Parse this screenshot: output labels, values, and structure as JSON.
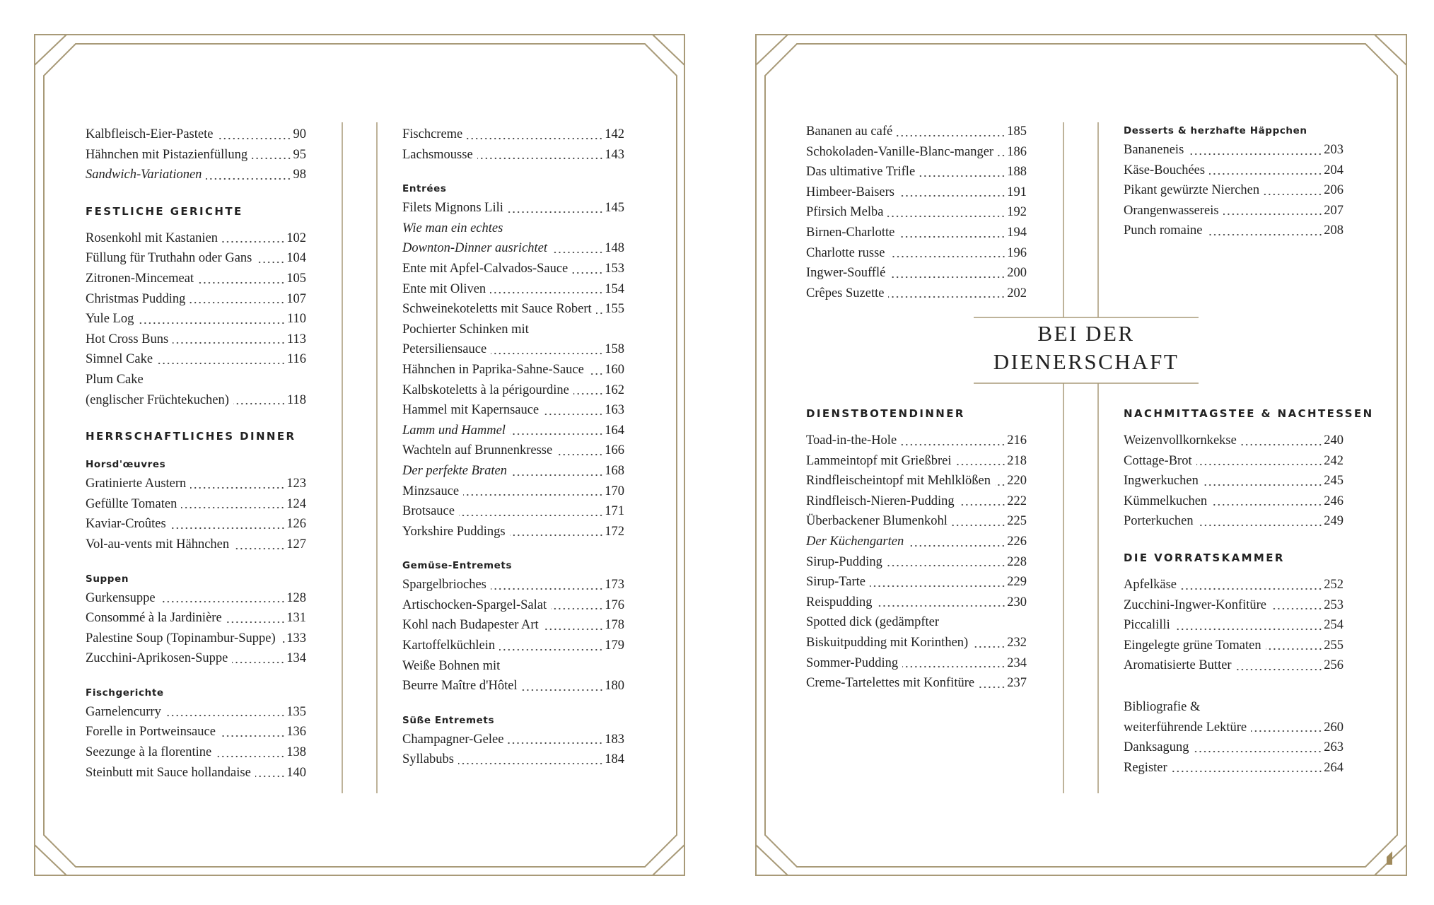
{
  "colors": {
    "frame": "#a89a78",
    "text": "#222222"
  },
  "section_title": [
    "BEI DER",
    "DIENERSCHAFT"
  ],
  "left_col1": [
    {
      "t": "Kalbfleisch-Eier-Pastete",
      "p": "90"
    },
    {
      "t": "Hähnchen mit Pistazienfüllung",
      "p": "95"
    },
    {
      "t": "Sandwich-Variationen",
      "p": "98",
      "i": true
    },
    {
      "h": "FESTLICHE GERICHTE"
    },
    {
      "t": "Rosenkohl mit Kastanien",
      "p": "102"
    },
    {
      "t": "Füllung für Truthahn oder Gans",
      "p": "104"
    },
    {
      "t": "Zitronen-Mincemeat",
      "p": "105"
    },
    {
      "t": "Christmas Pudding",
      "p": "107"
    },
    {
      "t": "Yule Log",
      "p": "110"
    },
    {
      "t": "Hot Cross Buns",
      "p": "113"
    },
    {
      "t": "Simnel Cake",
      "p": "116"
    },
    {
      "pre": "Plum Cake",
      "t": "(englischer Früchtekuchen)",
      "p": "118"
    },
    {
      "h": "HERRSCHAFTLICHES DINNER"
    },
    {
      "s": "Horsd'œuvres"
    },
    {
      "t": "Gratinierte Austern",
      "p": "123"
    },
    {
      "t": "Gefüllte Tomaten",
      "p": "124"
    },
    {
      "t": "Kaviar-Croûtes",
      "p": "126"
    },
    {
      "t": "Vol-au-vents mit Hähnchen",
      "p": "127"
    },
    {
      "s": "Suppen"
    },
    {
      "t": "Gurkensuppe",
      "p": "128"
    },
    {
      "t": "Consommé à la Jardinière",
      "p": "131"
    },
    {
      "t": "Palestine Soup (Topinambur-Suppe)",
      "p": "133"
    },
    {
      "t": "Zucchini-Aprikosen-Suppe",
      "p": "134"
    },
    {
      "s": "Fischgerichte"
    },
    {
      "t": "Garnelencurry",
      "p": "135"
    },
    {
      "t": "Forelle in Portweinsauce",
      "p": "136"
    },
    {
      "t": "Seezunge à la florentine",
      "p": "138"
    },
    {
      "t": "Steinbutt mit Sauce hollandaise",
      "p": "140"
    }
  ],
  "left_col2": [
    {
      "t": "Fischcreme",
      "p": "142"
    },
    {
      "t": "Lachsmousse",
      "p": "143"
    },
    {
      "s": "Entrées"
    },
    {
      "t": "Filets Mignons Lili",
      "p": "145"
    },
    {
      "pre": "Wie man ein echtes",
      "t": "Downton-Dinner ausrichtet",
      "p": "148",
      "i": true
    },
    {
      "t": "Ente mit Apfel-Calvados-Sauce",
      "p": "153"
    },
    {
      "t": "Ente mit Oliven",
      "p": "154"
    },
    {
      "t": "Schweinekoteletts mit Sauce Robert",
      "p": "155"
    },
    {
      "pre": "Pochierter Schinken mit",
      "t": "Petersiliensauce",
      "p": "158"
    },
    {
      "t": "Hähnchen in Paprika-Sahne-Sauce",
      "p": "160"
    },
    {
      "t": "Kalbskoteletts à la périgourdine",
      "p": "162"
    },
    {
      "t": "Hammel mit Kapernsauce",
      "p": "163"
    },
    {
      "t": "Lamm und Hammel",
      "p": "164",
      "i": true
    },
    {
      "t": "Wachteln auf Brunnenkresse",
      "p": "166"
    },
    {
      "t": "Der perfekte Braten",
      "p": "168",
      "i": true
    },
    {
      "t": "Minzsauce",
      "p": "170"
    },
    {
      "t": "Brotsauce",
      "p": "171"
    },
    {
      "t": "Yorkshire Puddings",
      "p": "172"
    },
    {
      "s": "Gemüse-Entremets"
    },
    {
      "t": "Spargelbrioches",
      "p": "173"
    },
    {
      "t": "Artischocken-Spargel-Salat",
      "p": "176"
    },
    {
      "t": "Kohl nach Budapester Art",
      "p": "178"
    },
    {
      "t": "Kartoffelküchlein",
      "p": "179"
    },
    {
      "pre": "Weiße Bohnen mit",
      "t": "Beurre Maître d'Hôtel",
      "p": "180"
    },
    {
      "s": "Süße Entremets"
    },
    {
      "t": "Champagner-Gelee",
      "p": "183"
    },
    {
      "t": "Syllabubs",
      "p": "184"
    }
  ],
  "right_col1_top": [
    {
      "t": "Bananen au café",
      "p": "185"
    },
    {
      "t": "Schokoladen-Vanille-Blanc-manger",
      "p": "186"
    },
    {
      "t": "Das ultimative Trifle",
      "p": "188"
    },
    {
      "t": "Himbeer-Baisers",
      "p": "191"
    },
    {
      "t": "Pfirsich Melba",
      "p": "192"
    },
    {
      "t": "Birnen-Charlotte",
      "p": "194"
    },
    {
      "t": "Charlotte russe",
      "p": "196"
    },
    {
      "t": "Ingwer-Soufflé",
      "p": "200"
    },
    {
      "t": "Crêpes Suzette",
      "p": "202"
    }
  ],
  "right_col1_bottom": [
    {
      "h": "DIENSTBOTENDINNER"
    },
    {
      "t": "Toad-in-the-Hole",
      "p": "216"
    },
    {
      "t": "Lammeintopf mit Grießbrei",
      "p": "218"
    },
    {
      "t": "Rindfleischeintopf mit Mehlklößen",
      "p": "220"
    },
    {
      "t": "Rindfleisch-Nieren-Pudding",
      "p": "222"
    },
    {
      "t": "Überbackener Blumenkohl",
      "p": "225"
    },
    {
      "t": "Der Küchengarten",
      "p": "226",
      "i": true
    },
    {
      "t": "Sirup-Pudding",
      "p": "228"
    },
    {
      "t": "Sirup-Tarte",
      "p": "229"
    },
    {
      "t": "Reispudding",
      "p": "230"
    },
    {
      "pre": "Spotted dick (gedämpfter",
      "t": "Biskuitpudding mit Korinthen)",
      "p": "232"
    },
    {
      "t": "Sommer-Pudding",
      "p": "234"
    },
    {
      "t": "Creme-Tartelettes mit Konfitüre",
      "p": "237"
    }
  ],
  "right_col2_top": [
    {
      "s": "Desserts & herzhafte Häppchen"
    },
    {
      "t": "Bananeneis",
      "p": "203"
    },
    {
      "t": "Käse-Bouchées",
      "p": "204"
    },
    {
      "t": "Pikant gewürzte Nierchen",
      "p": "206"
    },
    {
      "t": "Orangenwassereis",
      "p": "207"
    },
    {
      "t": "Punch romaine",
      "p": "208"
    }
  ],
  "right_col2_bottom": [
    {
      "h": "NACHMITTAGSTEE & NACHTESSEN"
    },
    {
      "t": "Weizenvollkornkekse",
      "p": "240"
    },
    {
      "t": "Cottage-Brot",
      "p": "242"
    },
    {
      "t": "Ingwerkuchen",
      "p": "245"
    },
    {
      "t": "Kümmelkuchen",
      "p": "246"
    },
    {
      "t": "Porterkuchen",
      "p": "249"
    },
    {
      "h": "DIE VORRATSKAMMER"
    },
    {
      "t": "Apfelkäse",
      "p": "252"
    },
    {
      "t": "Zucchini-Ingwer-Konfitüre",
      "p": "253"
    },
    {
      "t": "Piccalilli",
      "p": "254"
    },
    {
      "t": "Eingelegte grüne Tomaten",
      "p": "255"
    },
    {
      "t": "Aromatisierte Butter",
      "p": "256"
    }
  ],
  "right_col2_end": [
    {
      "pre": "Bibliografie &",
      "t": "weiterführende Lektüre",
      "p": "260"
    },
    {
      "t": "Danksagung",
      "p": "263"
    },
    {
      "t": "Register",
      "p": "264"
    }
  ]
}
